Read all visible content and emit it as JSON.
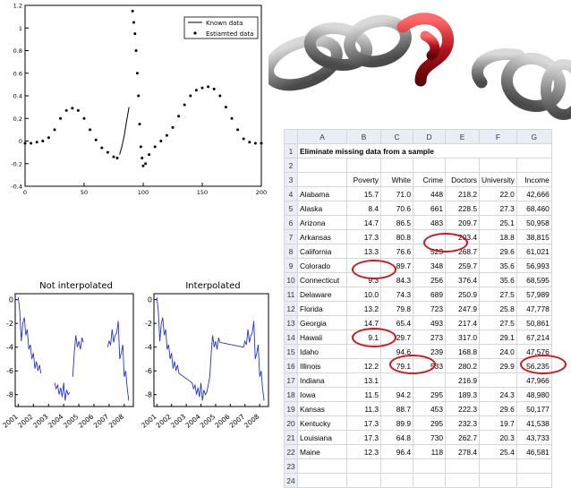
{
  "top_plot": {
    "legend": {
      "known": "Known data",
      "estimated": "Estiamted data"
    },
    "x_ticks": [
      "0",
      "50",
      "100",
      "150",
      "200"
    ],
    "y_ticks": [
      "1.2",
      "1",
      "0.8",
      "0.6",
      "0.4",
      "0.2",
      "0",
      "-0.2",
      "-0.4"
    ],
    "xlim": [
      0,
      200
    ],
    "ylim": [
      -0.4,
      1.2
    ]
  },
  "bottom_left": {
    "title": "Not interpolated",
    "y_ticks": [
      "0",
      "-2",
      "-4",
      "-6",
      "-8"
    ],
    "x_ticks": [
      "2001",
      "2002",
      "2003",
      "2004",
      "2005",
      "2006",
      "2007",
      "2008"
    ]
  },
  "bottom_right": {
    "title": "Interpolated",
    "y_ticks": [
      "0",
      "-2",
      "-4",
      "-6",
      "-8"
    ],
    "x_ticks": [
      "2001",
      "2002",
      "2003",
      "2004",
      "2005",
      "2006",
      "2007",
      "2008"
    ]
  },
  "chart_data": [
    {
      "type": "line",
      "xlim": [
        0,
        200
      ],
      "ylim": [
        -0.4,
        1.2
      ],
      "grid": false,
      "legend": "top-right",
      "series": [
        {
          "name": "Known data",
          "x": [
            80,
            82,
            84,
            86,
            88
          ],
          "y": [
            -0.12,
            -0.05,
            0.05,
            0.18,
            0.3
          ]
        },
        {
          "name": "Estiamted data",
          "x": [
            0,
            5,
            10,
            15,
            20,
            25,
            30,
            35,
            40,
            45,
            50,
            55,
            60,
            65,
            70,
            75,
            78,
            91,
            92,
            93,
            94,
            95,
            96,
            97,
            98,
            99,
            100,
            102,
            105,
            110,
            115,
            120,
            125,
            130,
            135,
            140,
            145,
            150,
            155,
            160,
            165,
            170,
            175,
            180,
            185,
            190,
            195,
            200
          ],
          "y": [
            -0.02,
            -0.02,
            -0.01,
            0.0,
            0.03,
            0.1,
            0.2,
            0.27,
            0.29,
            0.27,
            0.2,
            0.1,
            0.01,
            -0.06,
            -0.1,
            -0.14,
            -0.15,
            1.15,
            1.05,
            0.95,
            0.8,
            0.6,
            0.4,
            0.15,
            -0.05,
            -0.15,
            -0.22,
            -0.2,
            -0.12,
            -0.05,
            0.0,
            0.05,
            0.12,
            0.22,
            0.32,
            0.4,
            0.45,
            0.47,
            0.48,
            0.46,
            0.4,
            0.3,
            0.2,
            0.1,
            0.02,
            -0.01,
            -0.02,
            -0.02
          ]
        }
      ]
    },
    {
      "type": "line",
      "title": "Not interpolated",
      "x_range": [
        "2001",
        "2008"
      ],
      "ylim": [
        -9,
        0.5
      ],
      "series": [
        {
          "segments": [
            {
              "x": [
                2001.0,
                2001.1,
                2001.2,
                2001.3,
                2001.4,
                2001.5,
                2001.6,
                2001.7,
                2001.8,
                2001.9,
                2002.0,
                2002.1,
                2002.2,
                2002.3,
                2002.4,
                2002.5
              ],
              "y": [
                0.2,
                -1.0,
                -3.5,
                -2.0,
                -1.5,
                -3.0,
                -2.5,
                -4.2,
                -3.8,
                -5.0,
                -4.5,
                -5.8,
                -5.2,
                -6.0,
                -5.5,
                -6.2
              ]
            },
            {
              "x": [
                2003.4,
                2003.5,
                2003.6,
                2003.7,
                2003.8,
                2003.9,
                2004.0,
                2004.1,
                2004.2,
                2004.3,
                2004.4
              ],
              "y": [
                -7.0,
                -7.5,
                -7.2,
                -8.0,
                -7.4,
                -8.2,
                -7.0,
                -8.5,
                -7.6,
                -8.0,
                -7.8
              ]
            },
            {
              "x": [
                2004.6,
                2004.7,
                2004.8,
                2004.9,
                2005.0,
                2005.1,
                2005.2,
                2005.3
              ],
              "y": [
                -6.5,
                -4.5,
                -3.0,
                -4.0,
                -3.5,
                -4.2,
                -3.2,
                -3.6
              ]
            },
            {
              "x": [
                2006.9,
                2007.0,
                2007.1,
                2007.2,
                2007.3,
                2007.4,
                2007.5,
                2007.6,
                2007.7,
                2007.8,
                2007.9,
                2008.0,
                2008.1,
                2008.2,
                2008.3
              ],
              "y": [
                -4.0,
                -3.5,
                -3.8,
                -2.5,
                -3.6,
                -3.0,
                -2.8,
                -1.8,
                -5.0,
                -4.5,
                -3.8,
                -6.5,
                -6.0,
                -7.5,
                -8.5
              ]
            }
          ]
        }
      ]
    },
    {
      "type": "line",
      "title": "Interpolated",
      "x_range": [
        "2001",
        "2008"
      ],
      "ylim": [
        -9,
        0.5
      ],
      "series": [
        {
          "x": [
            2001.0,
            2001.1,
            2001.2,
            2001.3,
            2001.4,
            2001.5,
            2001.6,
            2001.7,
            2001.8,
            2001.9,
            2002.0,
            2002.1,
            2002.2,
            2002.3,
            2002.4,
            2002.5,
            2003.4,
            2003.5,
            2003.6,
            2003.7,
            2003.8,
            2003.9,
            2004.0,
            2004.1,
            2004.2,
            2004.3,
            2004.4,
            2004.6,
            2004.7,
            2004.8,
            2004.9,
            2005.0,
            2005.1,
            2005.2,
            2005.3,
            2006.9,
            2007.0,
            2007.1,
            2007.2,
            2007.3,
            2007.4,
            2007.5,
            2007.6,
            2007.7,
            2007.8,
            2007.9,
            2008.0,
            2008.1,
            2008.2,
            2008.3
          ],
          "y": [
            0.2,
            -1.0,
            -3.5,
            -2.0,
            -1.5,
            -3.0,
            -2.5,
            -4.2,
            -3.8,
            -5.0,
            -4.5,
            -5.8,
            -5.2,
            -6.0,
            -5.5,
            -6.2,
            -7.0,
            -7.5,
            -7.2,
            -8.0,
            -7.4,
            -8.2,
            -7.0,
            -8.5,
            -7.6,
            -8.0,
            -7.8,
            -6.5,
            -4.5,
            -3.0,
            -4.0,
            -3.5,
            -4.2,
            -3.2,
            -3.6,
            -4.0,
            -3.5,
            -3.8,
            -2.5,
            -3.6,
            -3.0,
            -2.8,
            -1.8,
            -5.0,
            -4.5,
            -3.8,
            -6.5,
            -6.0,
            -7.5,
            -8.5
          ]
        }
      ]
    }
  ],
  "sheet": {
    "cols": [
      "A",
      "B",
      "C",
      "D",
      "E",
      "F",
      "G"
    ],
    "title": "Eliminate missing data from a sample",
    "headers": [
      "",
      "Poverty",
      "White",
      "Crime",
      "Doctors",
      "University",
      "Income"
    ],
    "rows": [
      [
        "Alabama",
        "15.7",
        "71.0",
        "448",
        "218.2",
        "22.0",
        "42,666"
      ],
      [
        "Alaska",
        "8.4",
        "70.6",
        "661",
        "228.5",
        "27.3",
        "68,460"
      ],
      [
        "Arizona",
        "14.7",
        "86.5",
        "483",
        "209.7",
        "25.1",
        "50,958"
      ],
      [
        "Arkansas",
        "17.3",
        "80.8",
        "",
        "203.4",
        "18.8",
        "38,815"
      ],
      [
        "California",
        "13.3",
        "76.6",
        "523",
        "268.7",
        "29.6",
        "61,021"
      ],
      [
        "Colorado",
        "",
        "89.7",
        "348",
        "259.7",
        "35.6",
        "56,993"
      ],
      [
        "Connecticut",
        "9.3",
        "84.3",
        "256",
        "376.4",
        "35.6",
        "68,595"
      ],
      [
        "Delaware",
        "10.0",
        "74.3",
        "689",
        "250.9",
        "27.5",
        "57,989"
      ],
      [
        "Florida",
        "13.2",
        "79.8",
        "723",
        "247.9",
        "25.8",
        "47,778"
      ],
      [
        "Georgia",
        "14.7",
        "65.4",
        "493",
        "217.4",
        "27.5",
        "50,861"
      ],
      [
        "Hawaii",
        "9.1",
        "29.7",
        "273",
        "317.0",
        "29.1",
        "67,214"
      ],
      [
        "Idaho",
        "",
        "94.6",
        "239",
        "168.8",
        "24.0",
        "47,576"
      ],
      [
        "Illinois",
        "12.2",
        "79.1",
        "533",
        "280.2",
        "29.9",
        "56,235"
      ],
      [
        "Indiana",
        "13.1",
        "",
        "",
        "216.9",
        "",
        "47,966"
      ],
      [
        "Iowa",
        "11.5",
        "94.2",
        "295",
        "189.3",
        "24.3",
        "48,980"
      ],
      [
        "Kansas",
        "11.3",
        "88.7",
        "453",
        "222.3",
        "29.6",
        "50,177"
      ],
      [
        "Kentucky",
        "17.3",
        "89.9",
        "295",
        "232.3",
        "19.7",
        "41,538"
      ],
      [
        "Louisiana",
        "17.3",
        "64.8",
        "730",
        "262.7",
        "20.3",
        "43,733"
      ],
      [
        "Maine",
        "12.3",
        "96.4",
        "118",
        "278.4",
        "25.4",
        "46,581"
      ]
    ],
    "row_numbers": [
      "1",
      "2",
      "3",
      "4",
      "5",
      "6",
      "7",
      "8",
      "9",
      "10",
      "11",
      "12",
      "13",
      "14",
      "15",
      "16",
      "17",
      "18",
      "19",
      "20",
      "21",
      "22",
      "23",
      "24"
    ],
    "ring_color": "#d0141a"
  },
  "chain": {
    "link_color": "#9a9a9a",
    "red_link_color": "#b3121c"
  }
}
